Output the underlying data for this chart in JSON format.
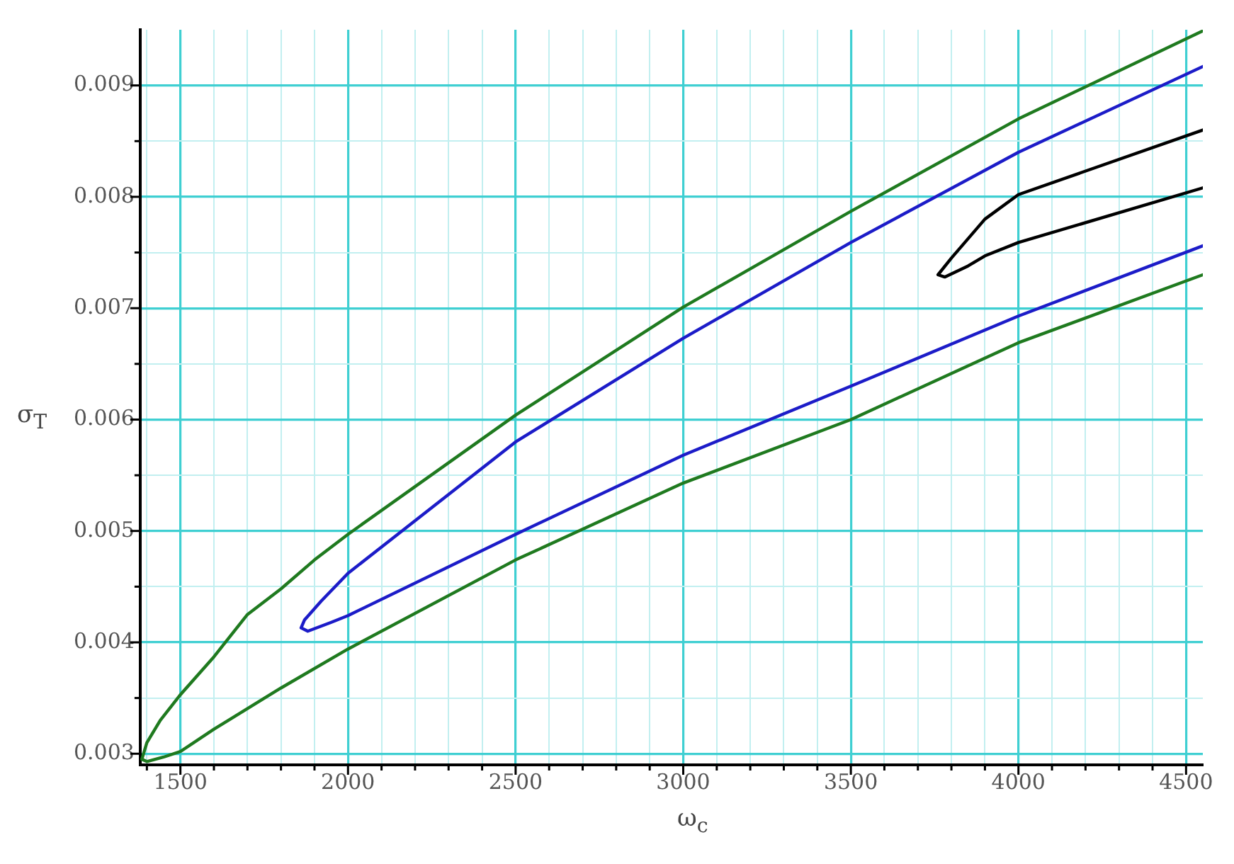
{
  "chart_data": {
    "type": "line",
    "xlabel": "ω$_{c}$",
    "ylabel": "σ$_{T}$",
    "xlim": [
      1380,
      4550
    ],
    "ylim": [
      0.0029,
      0.0095
    ],
    "xticks": [
      {
        "value": 1400,
        "label": null
      },
      1500,
      {
        "value": 1600,
        "label": null
      },
      {
        "value": 1700,
        "label": null
      },
      {
        "value": 1800,
        "label": null
      },
      {
        "value": 1900,
        "label": null
      },
      2000,
      {
        "value": 2100,
        "label": null
      },
      {
        "value": 2200,
        "label": null
      },
      {
        "value": 2300,
        "label": null
      },
      {
        "value": 2400,
        "label": null
      },
      2500,
      {
        "value": 2600,
        "label": null
      },
      {
        "value": 2700,
        "label": null
      },
      {
        "value": 2800,
        "label": null
      },
      {
        "value": 2900,
        "label": null
      },
      3000,
      {
        "value": 3100,
        "label": null
      },
      {
        "value": 3200,
        "label": null
      },
      {
        "value": 3300,
        "label": null
      },
      {
        "value": 3400,
        "label": null
      },
      3500,
      {
        "value": 3600,
        "label": null
      },
      {
        "value": 3700,
        "label": null
      },
      {
        "value": 3800,
        "label": null
      },
      {
        "value": 3900,
        "label": null
      },
      4000,
      {
        "value": 4100,
        "label": null
      },
      {
        "value": 4200,
        "label": null
      },
      {
        "value": 4300,
        "label": null
      },
      {
        "value": 4400,
        "label": null
      },
      4500
    ],
    "yticks": [
      0.003,
      {
        "value": 0.0035,
        "label": null
      },
      0.004,
      {
        "value": 0.0045,
        "label": null
      },
      0.005,
      {
        "value": 0.0055,
        "label": null
      },
      0.006,
      {
        "value": 0.0065,
        "label": null
      },
      0.007,
      {
        "value": 0.0075,
        "label": null
      },
      0.008,
      {
        "value": 0.0085,
        "label": null
      },
      0.009
    ],
    "grid": true,
    "legend": false,
    "marker": "none",
    "line_style": "solid",
    "series": [
      {
        "color": "#1f7a1f",
        "x": [
          4550,
          4000,
          3500,
          3000,
          2500,
          2000,
          1900,
          1800,
          1700,
          1600,
          1500,
          1440,
          1400,
          1385,
          1400,
          1450,
          1500,
          1600,
          1800,
          2000,
          2500,
          3000,
          3500,
          4000,
          4550
        ],
        "values": [
          0.00949,
          0.0087,
          0.00787,
          0.00701,
          0.00604,
          0.00497,
          0.00474,
          0.00448,
          0.00425,
          0.00387,
          0.00353,
          0.0033,
          0.0031,
          0.00295,
          0.00293,
          0.00297,
          0.00302,
          0.00322,
          0.00359,
          0.00394,
          0.00474,
          0.00543,
          0.006,
          0.00669,
          0.0073
        ]
      },
      {
        "color": "#1c1cc8",
        "x": [
          4550,
          4000,
          3500,
          3000,
          2500,
          2000,
          1920,
          1870,
          1860,
          1880,
          1950,
          2000,
          2500,
          3000,
          3500,
          4000,
          4550
        ],
        "values": [
          0.00917,
          0.0084,
          0.00759,
          0.00673,
          0.0058,
          0.00462,
          0.00437,
          0.0042,
          0.00413,
          0.0041,
          0.00418,
          0.00424,
          0.00497,
          0.00568,
          0.0063,
          0.00693,
          0.00756
        ]
      },
      {
        "color": "#000000",
        "x": [
          4550,
          4000,
          3900,
          3800,
          3760,
          3780,
          3850,
          3900,
          4000,
          4550
        ],
        "values": [
          0.0086,
          0.00802,
          0.0078,
          0.00745,
          0.0073,
          0.00728,
          0.00738,
          0.00747,
          0.00759,
          0.00808
        ]
      }
    ]
  }
}
